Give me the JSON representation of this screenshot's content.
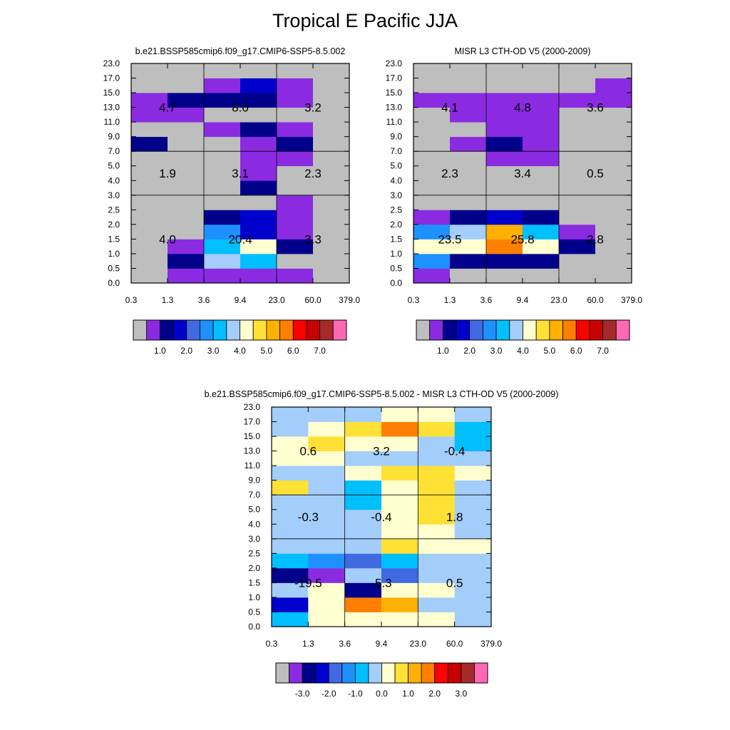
{
  "page": {
    "title": "Tropical E Pacific JJA"
  },
  "palette": [
    "#bebebe",
    "#8a2be2",
    "#00008b",
    "#0000cd",
    "#4169e1",
    "#1e90ff",
    "#00bfff",
    "#a3cdfa",
    "#ffffcf",
    "#ffe135",
    "#ffb000",
    "#ff7f00",
    "#ff0000",
    "#c80000",
    "#a52a2a",
    "#ff69b4"
  ],
  "chart_data": [
    {
      "type": "heatmap",
      "title": "b.e21.BSSP585cmip6.f09_g17.CMIP6-SSP5-8.5.002",
      "x_ticks": [
        "0.3",
        "1.3",
        "3.6",
        "9.4",
        "23.0",
        "60.0",
        "379.0"
      ],
      "y_ticks": [
        "0.0",
        "0.5",
        "1.0",
        "1.5",
        "2.0",
        "2.5",
        "3.0",
        "4.0",
        "5.0",
        "7.0",
        "9.0",
        "11.0",
        "13.0",
        "15.0",
        "17.0",
        "23.0"
      ],
      "grid": {
        "x_divisions": [
          2,
          4
        ],
        "y_divisions": [
          6,
          9
        ]
      },
      "cells": [
        [
          0,
          1,
          1,
          1,
          1,
          0
        ],
        [
          0,
          2,
          7,
          6,
          0,
          0
        ],
        [
          0,
          1,
          6,
          8,
          2,
          0
        ],
        [
          0,
          0,
          5,
          3,
          1,
          0
        ],
        [
          0,
          0,
          2,
          3,
          1,
          0
        ],
        [
          0,
          0,
          0,
          0,
          1,
          0
        ],
        [
          0,
          0,
          0,
          2,
          0,
          0
        ],
        [
          0,
          0,
          0,
          1,
          0,
          0
        ],
        [
          0,
          0,
          0,
          1,
          1,
          0
        ],
        [
          2,
          0,
          0,
          1,
          2,
          0
        ],
        [
          0,
          0,
          1,
          2,
          1,
          0
        ],
        [
          1,
          1,
          0,
          0,
          0,
          0
        ],
        [
          1,
          2,
          2,
          2,
          1,
          0
        ],
        [
          0,
          0,
          1,
          3,
          1,
          0
        ],
        [
          0,
          0,
          0,
          0,
          0,
          0
        ]
      ],
      "annotations": [
        {
          "col": 0,
          "row": 1,
          "text": "4.7"
        },
        {
          "col": 1,
          "row": 1,
          "text": "8.0"
        },
        {
          "col": 2,
          "row": 1,
          "text": "3.2"
        },
        {
          "col": 0,
          "row": 2,
          "text": "1.9"
        },
        {
          "col": 1,
          "row": 2,
          "text": "3.1"
        },
        {
          "col": 2,
          "row": 2,
          "text": "2.3"
        },
        {
          "col": 0,
          "row": 3,
          "text": "4.0"
        },
        {
          "col": 1,
          "row": 3,
          "text": "20.4"
        },
        {
          "col": 2,
          "row": 3,
          "text": "3.3"
        }
      ],
      "colorbar": {
        "labels": [
          "1.0",
          "2.0",
          "3.0",
          "4.0",
          "5.0",
          "6.0",
          "7.0"
        ]
      }
    },
    {
      "type": "heatmap",
      "title": "MISR L3 CTH-OD V5 (2000-2009)",
      "x_ticks": [
        "0.3",
        "1.3",
        "3.6",
        "9.4",
        "23.0",
        "60.0",
        "379.0"
      ],
      "y_ticks": [
        "0.0",
        "0.5",
        "1.0",
        "1.5",
        "2.0",
        "2.5",
        "3.0",
        "4.0",
        "5.0",
        "7.0",
        "9.0",
        "11.0",
        "13.0",
        "15.0",
        "17.0",
        "23.0"
      ],
      "grid": {
        "x_divisions": [
          2,
          4
        ],
        "y_divisions": [
          6,
          9
        ]
      },
      "cells": [
        [
          1,
          0,
          0,
          0,
          0,
          0
        ],
        [
          5,
          2,
          2,
          2,
          0,
          0
        ],
        [
          8,
          8,
          11,
          8,
          2,
          0
        ],
        [
          5,
          7,
          10,
          6,
          1,
          0
        ],
        [
          1,
          2,
          3,
          2,
          0,
          0
        ],
        [
          0,
          0,
          0,
          0,
          0,
          0
        ],
        [
          0,
          0,
          0,
          0,
          0,
          0
        ],
        [
          0,
          0,
          0,
          0,
          0,
          0
        ],
        [
          0,
          0,
          1,
          1,
          0,
          0
        ],
        [
          0,
          1,
          2,
          1,
          0,
          0
        ],
        [
          0,
          0,
          1,
          1,
          0,
          0
        ],
        [
          0,
          1,
          1,
          1,
          0,
          0
        ],
        [
          1,
          1,
          1,
          1,
          1,
          1
        ],
        [
          0,
          0,
          0,
          0,
          0,
          1
        ],
        [
          0,
          0,
          0,
          0,
          0,
          0
        ]
      ],
      "annotations": [
        {
          "col": 0,
          "row": 1,
          "text": "4.1"
        },
        {
          "col": 1,
          "row": 1,
          "text": "4.8"
        },
        {
          "col": 2,
          "row": 1,
          "text": "3.6"
        },
        {
          "col": 0,
          "row": 2,
          "text": "2.3"
        },
        {
          "col": 1,
          "row": 2,
          "text": "3.4"
        },
        {
          "col": 2,
          "row": 2,
          "text": "0.5"
        },
        {
          "col": 0,
          "row": 3,
          "text": "23.5"
        },
        {
          "col": 1,
          "row": 3,
          "text": "25.8"
        },
        {
          "col": 2,
          "row": 3,
          "text": "2.8"
        }
      ],
      "colorbar": {
        "labels": [
          "1.0",
          "2.0",
          "3.0",
          "4.0",
          "5.0",
          "6.0",
          "7.0"
        ]
      }
    },
    {
      "type": "heatmap",
      "title": "b.e21.BSSP585cmip6.f09_g17.CMIP6-SSP5-8.5.002 - MISR L3 CTH-OD V5 (2000-2009)",
      "x_ticks": [
        "0.3",
        "1.3",
        "3.6",
        "9.4",
        "23.0",
        "60.0",
        "379.0"
      ],
      "y_ticks": [
        "0.0",
        "0.5",
        "1.0",
        "1.5",
        "2.0",
        "2.5",
        "3.0",
        "4.0",
        "5.0",
        "7.0",
        "9.0",
        "11.0",
        "13.0",
        "15.0",
        "17.0",
        "23.0"
      ],
      "grid": {
        "x_divisions": [
          2,
          4
        ],
        "y_divisions": [
          6,
          9
        ]
      },
      "cells": [
        [
          6,
          8,
          8,
          8,
          8,
          7
        ],
        [
          3,
          8,
          11,
          10,
          7,
          7
        ],
        [
          7,
          8,
          2,
          8,
          8,
          7
        ],
        [
          2,
          1,
          7,
          4,
          7,
          7
        ],
        [
          6,
          5,
          4,
          6,
          7,
          7
        ],
        [
          7,
          7,
          7,
          9,
          8,
          8
        ],
        [
          7,
          7,
          7,
          8,
          8,
          7
        ],
        [
          7,
          7,
          7,
          8,
          9,
          7
        ],
        [
          7,
          7,
          6,
          8,
          9,
          7
        ],
        [
          9,
          7,
          6,
          8,
          9,
          7
        ],
        [
          7,
          7,
          8,
          9,
          9,
          8
        ],
        [
          8,
          8,
          7,
          7,
          7,
          7
        ],
        [
          8,
          9,
          8,
          8,
          7,
          6
        ],
        [
          7,
          8,
          9,
          11,
          9,
          6
        ],
        [
          7,
          7,
          7,
          8,
          8,
          7
        ]
      ],
      "annotations": [
        {
          "col": 0,
          "row": 1,
          "text": "0.6"
        },
        {
          "col": 1,
          "row": 1,
          "text": "3.2"
        },
        {
          "col": 2,
          "row": 1,
          "text": "-0.4"
        },
        {
          "col": 0,
          "row": 2,
          "text": "-0.3"
        },
        {
          "col": 1,
          "row": 2,
          "text": "-0.4"
        },
        {
          "col": 2,
          "row": 2,
          "text": "1.8"
        },
        {
          "col": 0,
          "row": 3,
          "text": "-19.5"
        },
        {
          "col": 1,
          "row": 3,
          "text": "-5.3"
        },
        {
          "col": 2,
          "row": 3,
          "text": "0.5"
        }
      ],
      "colorbar": {
        "labels": [
          "-3.0",
          "-2.0",
          "-1.0",
          "0.0",
          "1.0",
          "2.0",
          "3.0"
        ]
      }
    }
  ]
}
